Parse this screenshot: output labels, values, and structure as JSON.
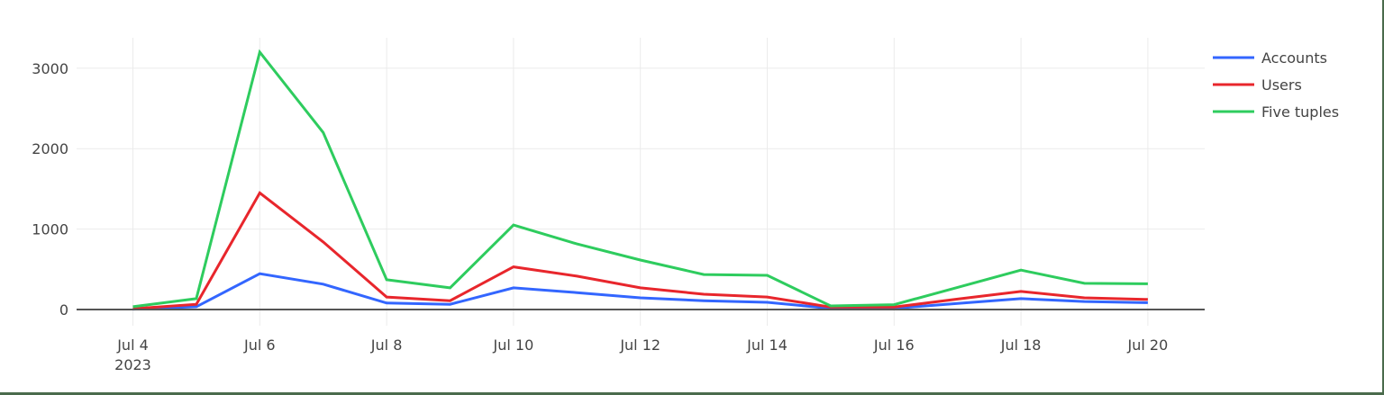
{
  "chart_data": {
    "type": "line",
    "title": "",
    "xlabel": "",
    "ylabel": "",
    "x": [
      "2023-07-04",
      "2023-07-05",
      "2023-07-06",
      "2023-07-07",
      "2023-07-08",
      "2023-07-09",
      "2023-07-10",
      "2023-07-11",
      "2023-07-12",
      "2023-07-13",
      "2023-07-14",
      "2023-07-15",
      "2023-07-16",
      "2023-07-17",
      "2023-07-18",
      "2023-07-19",
      "2023-07-20"
    ],
    "series": [
      {
        "name": "Accounts",
        "color": "#3366ff",
        "values": [
          5,
          35,
          445,
          315,
          80,
          65,
          270,
          210,
          145,
          110,
          90,
          15,
          15,
          75,
          135,
          100,
          85
        ]
      },
      {
        "name": "Users",
        "color": "#e8262c",
        "values": [
          10,
          65,
          1450,
          840,
          155,
          110,
          530,
          415,
          270,
          190,
          155,
          30,
          30,
          130,
          225,
          145,
          125
        ]
      },
      {
        "name": "Five tuples",
        "color": "#2ecc5e",
        "values": [
          35,
          135,
          3200,
          2200,
          370,
          270,
          1050,
          815,
          615,
          435,
          425,
          45,
          60,
          275,
          490,
          325,
          320
        ]
      }
    ],
    "ylim": [
      -180,
      3390
    ],
    "yticks": [
      0,
      1000,
      2000,
      3000
    ],
    "ytick_labels": [
      "0",
      "1000",
      "2000",
      "3000"
    ],
    "xticks": [
      "2023-07-04",
      "2023-07-06",
      "2023-07-08",
      "2023-07-10",
      "2023-07-12",
      "2023-07-14",
      "2023-07-16",
      "2023-07-18",
      "2023-07-20"
    ],
    "xtick_labels": [
      "Jul 4",
      "Jul 6",
      "Jul 8",
      "Jul 10",
      "Jul 12",
      "Jul 14",
      "Jul 16",
      "Jul 18",
      "Jul 20"
    ],
    "xtick_sublabel": "2023",
    "grid": true,
    "legend_position": "top-right"
  },
  "legend": {
    "items": [
      {
        "label": "Accounts",
        "color": "#3366ff"
      },
      {
        "label": "Users",
        "color": "#e8262c"
      },
      {
        "label": "Five tuples",
        "color": "#2ecc5e"
      }
    ]
  }
}
